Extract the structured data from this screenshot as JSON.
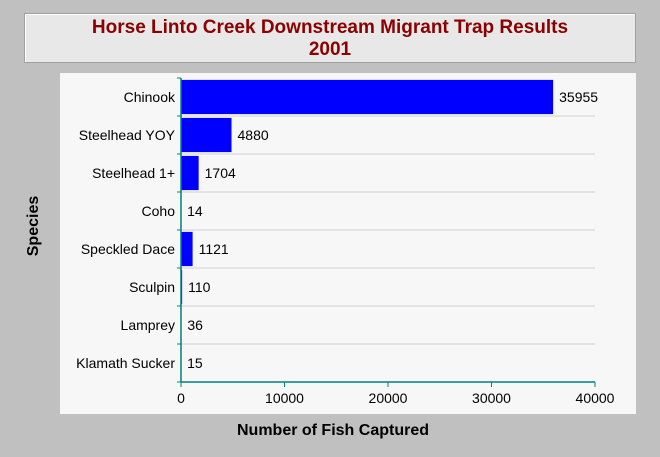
{
  "chart_data": {
    "type": "bar",
    "orientation": "horizontal",
    "title": [
      "Horse Linto Creek Downstream Migrant Trap Results",
      "2001"
    ],
    "xlabel": "Number of Fish Captured",
    "ylabel": "Species",
    "categories": [
      "Chinook",
      "Steelhead YOY",
      "Steelhead 1+",
      "Coho",
      "Speckled Dace",
      "Sculpin",
      "Lamprey",
      "Klamath Sucker"
    ],
    "values": [
      35955,
      4880,
      1704,
      14,
      1121,
      110,
      36,
      15
    ],
    "value_labels": [
      "35955",
      "4880",
      "1704",
      "14",
      "1121",
      "110",
      "36",
      "15"
    ],
    "xlim": [
      0,
      40000
    ],
    "xticks": [
      0,
      10000,
      20000,
      30000,
      40000
    ],
    "xtick_labels": [
      "0",
      "10000",
      "20000",
      "30000",
      "40000"
    ],
    "bar_color": "#0000ff",
    "grid": true
  },
  "colors": {
    "background": "#c0c0c0",
    "title_text": "#8b0000",
    "axis": "#008080",
    "grid": "#d0d0d0"
  }
}
